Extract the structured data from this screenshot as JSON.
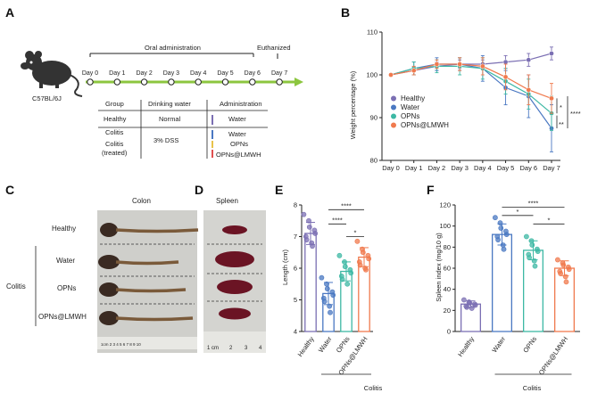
{
  "colors": {
    "healthy": "#7b6fb3",
    "water": "#4a78c2",
    "opns": "#3db8a4",
    "opns_lmwh": "#f07a4e",
    "timeline": "#8cc63f"
  },
  "panel_letters": [
    "A",
    "B",
    "C",
    "D",
    "E",
    "F"
  ],
  "panel_a": {
    "strain": "C57BL/6J",
    "oral_admin": "Oral administration",
    "euthanized": "Euthanized",
    "days": [
      "Day 0",
      "Day 1",
      "Day 2",
      "Day 3",
      "Day 4",
      "Day 5",
      "Day 6",
      "Day 7"
    ],
    "table_headers": [
      "Group",
      "Drinking water",
      "Administration"
    ],
    "groups": [
      "Healthy",
      "Colitis",
      "Colitis",
      "(treated)"
    ],
    "drinking": [
      "Normal",
      "3% DSS"
    ],
    "administration": [
      "Water",
      "Water",
      "OPNs",
      "OPNs@LMWH"
    ]
  },
  "panel_c": {
    "title": "Colon",
    "rows": [
      "Healthy",
      "Water",
      "OPNs",
      "OPNs@LMWH"
    ],
    "group_label": "Colitis",
    "ruler": "1cm 2 3 4 5 6 7 8 9 10"
  },
  "panel_d": {
    "title": "Spleen",
    "ruler_labels": [
      "1 cm",
      "2",
      "3",
      "4"
    ]
  },
  "chart_data": [
    {
      "type": "line",
      "panel": "B",
      "xlabel": "",
      "ylabel": "Weight percentage (%)",
      "categories": [
        "Day 0",
        "Day 1",
        "Day 2",
        "Day 3",
        "Day 4",
        "Day 5",
        "Day 6",
        "Day 7"
      ],
      "ylim": [
        80,
        110
      ],
      "yticks": [
        80,
        90,
        100,
        110
      ],
      "legend_position": "left",
      "series": [
        {
          "name": "Healthy",
          "values": [
            100,
            101,
            102,
            102.5,
            102.5,
            103,
            103.5,
            105
          ],
          "err": [
            0,
            1,
            1,
            1,
            1,
            1.5,
            1.5,
            1.5
          ]
        },
        {
          "name": "Water",
          "values": [
            100,
            101.5,
            102.5,
            102.5,
            101.5,
            97,
            95,
            87.5
          ],
          "err": [
            0,
            1.5,
            1.5,
            1.5,
            3,
            4,
            5,
            5.5
          ]
        },
        {
          "name": "OPNs",
          "values": [
            100,
            101.5,
            102,
            102,
            101.5,
            98.5,
            95.5,
            91
          ],
          "err": [
            0,
            1.5,
            1.5,
            2,
            2.5,
            3,
            3.5,
            4
          ]
        },
        {
          "name": "OPNs@LMWH",
          "values": [
            100,
            101,
            102.5,
            102.5,
            102,
            99.5,
            96.5,
            94.5
          ],
          "err": [
            0,
            1,
            1,
            1.5,
            2,
            3,
            3.5,
            3.5
          ]
        }
      ],
      "significance": [
        "*",
        "**",
        "****"
      ]
    },
    {
      "type": "bar",
      "panel": "E",
      "xlabel": "",
      "ylabel": "Length (cm)",
      "categories": [
        "Healthy",
        "Water",
        "OPNs",
        "OPNs@LMWH"
      ],
      "values": [
        7.1,
        5.2,
        5.9,
        6.35
      ],
      "err": [
        0.35,
        0.35,
        0.3,
        0.3
      ],
      "ylim": [
        4,
        8
      ],
      "yticks": [
        4,
        5,
        6,
        7,
        8
      ],
      "group_label": "Colitis",
      "significance": [
        "****",
        "****",
        "*"
      ],
      "points": [
        [
          7.7,
          7.5,
          7.3,
          7.2,
          7.1,
          7.0,
          6.9,
          6.8,
          6.7
        ],
        [
          5.7,
          5.5,
          5.35,
          5.25,
          5.15,
          5.05,
          4.95,
          4.8,
          4.6
        ],
        [
          6.4,
          6.2,
          6.05,
          5.95,
          5.85,
          5.75,
          5.65,
          5.5
        ],
        [
          6.85,
          6.6,
          6.5,
          6.4,
          6.3,
          6.2,
          6.1,
          6.0,
          5.95
        ]
      ]
    },
    {
      "type": "bar",
      "panel": "F",
      "xlabel": "",
      "ylabel": "Spleen index (mg/10 g)",
      "categories": [
        "Healthy",
        "Water",
        "OPNs",
        "OPNs@LMWH"
      ],
      "values": [
        26,
        92,
        77,
        60
      ],
      "err": [
        3,
        10,
        9,
        7
      ],
      "ylim": [
        0,
        120
      ],
      "yticks": [
        0,
        20,
        40,
        60,
        80,
        100,
        120
      ],
      "group_label": "Colitis",
      "significance": [
        "****",
        "*",
        "*"
      ],
      "points": [
        [
          30,
          28,
          27,
          26,
          25,
          24,
          23,
          22
        ],
        [
          108,
          103,
          98,
          95,
          92,
          90,
          87,
          82,
          78
        ],
        [
          90,
          86,
          82,
          78,
          76,
          73,
          70,
          67,
          62
        ],
        [
          68,
          65,
          63,
          61,
          59,
          57,
          55,
          52,
          47
        ]
      ]
    }
  ]
}
